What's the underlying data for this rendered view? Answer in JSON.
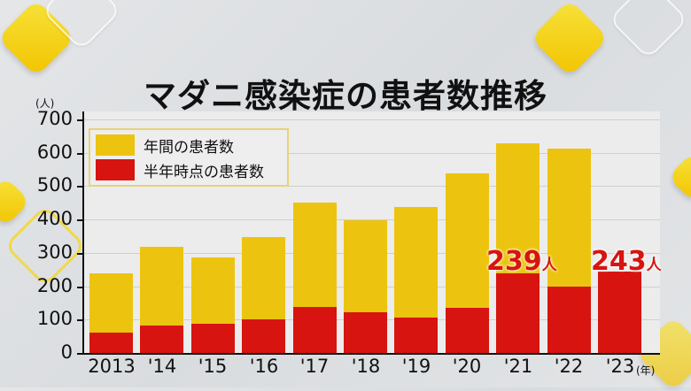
{
  "title": "マダニ感染症の患者数推移",
  "colors": {
    "annual": "#ecc40f",
    "half_year": "#d7140f",
    "background": "#e0e2e4"
  },
  "legend": {
    "items": [
      {
        "label": "年間の患者数",
        "color": "#ecc40f"
      },
      {
        "label": "半年時点の患者数",
        "color": "#d7140f"
      }
    ]
  },
  "axis": {
    "y_unit": "(人)",
    "x_unit": "(年)",
    "y_ticks": [
      "0",
      "100",
      "200",
      "300",
      "400",
      "500",
      "600",
      "700"
    ]
  },
  "annotations": [
    {
      "value": "239",
      "unit": "人",
      "category": "'21"
    },
    {
      "value": "243",
      "unit": "人",
      "category": "'23"
    }
  ],
  "chart_data": {
    "type": "bar",
    "title": "マダニ感染症の患者数推移",
    "xlabel": "(年)",
    "ylabel": "(人)",
    "ylim": [
      0,
      700
    ],
    "y_ticks": [
      0,
      100,
      200,
      300,
      400,
      500,
      600,
      700
    ],
    "grid": true,
    "legend_position": "upper-left",
    "categories": [
      "2013",
      "'14",
      "'15",
      "'16",
      "'17",
      "'18",
      "'19",
      "'20",
      "'21",
      "'22",
      "'23"
    ],
    "series": [
      {
        "name": "年間の患者数",
        "values": [
          240,
          318,
          287,
          348,
          451,
          398,
          438,
          538,
          629,
          613,
          null
        ]
      },
      {
        "name": "半年時点の患者数",
        "values": [
          60,
          83,
          88,
          101,
          138,
          122,
          106,
          135,
          239,
          200,
          243
        ]
      }
    ],
    "annotations": [
      {
        "category": "'21",
        "text": "239人"
      },
      {
        "category": "'23",
        "text": "243人"
      }
    ]
  }
}
